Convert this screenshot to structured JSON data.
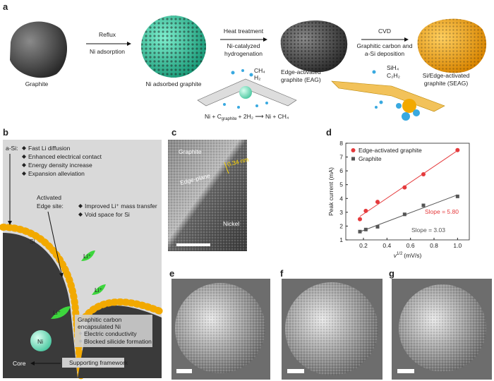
{
  "panel_labels": [
    "a",
    "b",
    "c",
    "d",
    "e",
    "f",
    "g"
  ],
  "panel_a": {
    "graphite": "Graphite",
    "reflux": "Reflux",
    "ni_adsorption": "Ni adsorption",
    "ni_adsorbed": "Ni adsorbed graphite",
    "heat": "Heat treatment",
    "hydro": [
      "Ni-catalyzed",
      "hydrogenation"
    ],
    "eag": [
      "Edge-activated",
      "graphite (EAG)"
    ],
    "cvd": "CVD",
    "deposition": [
      "Graphitic carbon and",
      "a-Si deposition"
    ],
    "seag": [
      "Si/Edge-activated",
      "graphite (SEAG)"
    ],
    "ch4": "CH₄",
    "h2": "H₂",
    "sih4": "SiH₄",
    "c2h2": "C₂H₂",
    "equation": {
      "lhs": "Ni + C",
      "sub": "graphite",
      "rhs": "+ 2H₂ ⟶ Ni + CH₄"
    }
  },
  "panel_b": {
    "asi": "a-Si:",
    "asi_points": [
      "Fast Li diffusion",
      "Enhanced electrical contact",
      "Energy density increase",
      "Expansion alleviation"
    ],
    "edge": [
      "Activated",
      "Edge site:"
    ],
    "edge_points": [
      "Improved Li⁺ mass transfer",
      "Void space for Si"
    ],
    "si": "Si",
    "li": "Li⁺",
    "ni_label": [
      "Graphitic carbon",
      "encapsulated Ni"
    ],
    "ni_points": [
      "Electric conductivity",
      "Blocked silicide formation"
    ],
    "ni": "Ni",
    "core": "Core",
    "framework": "Supporting framework"
  },
  "panel_c": {
    "graphite": "Graphite",
    "edge_plane": "Edge-plane",
    "spacing": "0.34 nm",
    "nickel": "Nickel"
  },
  "chart_data": {
    "type": "scatter",
    "ylabel": "Peak current (mA)",
    "xlabel": "v",
    "xlabel_sup": "1/2",
    "xlabel_unit": "(mV/s)",
    "x": [
      0.17,
      0.22,
      0.32,
      0.55,
      0.71,
      1.0
    ],
    "series": [
      {
        "name": "Edge-activated graphite",
        "color": "#e53a3c",
        "marker": "circle",
        "values": [
          2.5,
          3.1,
          3.75,
          4.8,
          5.75,
          7.5
        ]
      },
      {
        "name": "Graphite",
        "color": "#555555",
        "marker": "square",
        "values": [
          1.6,
          1.75,
          1.95,
          2.85,
          3.5,
          4.15
        ]
      }
    ],
    "annotations": [
      "Slope = 5.80",
      "Slope = 3.03"
    ],
    "xlim": [
      0.05,
      1.1
    ],
    "ylim": [
      1,
      8
    ],
    "xticks": [
      0.2,
      0.4,
      0.6,
      0.8,
      {
        "value": 1,
        "label": "1.0"
      }
    ],
    "yticks": [
      1,
      2,
      3,
      4,
      5,
      6,
      7,
      8
    ],
    "legend": "upper left"
  }
}
